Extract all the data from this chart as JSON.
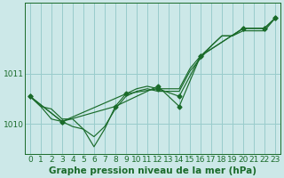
{
  "background_color": "#cce8e8",
  "plot_bg_color": "#cce8e8",
  "grid_color": "#99cccc",
  "line_color": "#1a6b2a",
  "xlabel": "Graphe pression niveau de la mer (hPa)",
  "ylim": [
    1009.4,
    1012.4
  ],
  "xlim": [
    -0.5,
    23.5
  ],
  "yticks": [
    1010,
    1011
  ],
  "xticks": [
    0,
    1,
    2,
    3,
    4,
    5,
    6,
    7,
    8,
    9,
    10,
    11,
    12,
    13,
    14,
    15,
    16,
    17,
    18,
    19,
    20,
    21,
    22,
    23
  ],
  "series": [
    [
      1010.55,
      1010.35,
      1010.3,
      1010.1,
      1010.1,
      1009.9,
      1009.75,
      1009.95,
      1010.3,
      1010.55,
      1010.65,
      1010.7,
      1010.65,
      1010.65,
      1010.65,
      1011.05,
      1011.3,
      1011.55,
      1011.75,
      1011.75,
      1011.85,
      1011.85,
      1011.85,
      1012.1
    ],
    [
      1010.55,
      1010.35,
      1010.1,
      1010.05,
      1009.95,
      1009.9,
      1009.55,
      1009.9,
      1010.35,
      1010.6,
      1010.7,
      1010.75,
      1010.7,
      1010.7,
      1010.7,
      1011.1,
      1011.35,
      1011.55,
      1011.75,
      1011.75,
      1011.9,
      1011.9,
      1011.9,
      1012.1
    ],
    [
      1010.55,
      null,
      null,
      1010.05,
      null,
      null,
      null,
      null,
      null,
      1010.6,
      null,
      null,
      1010.7,
      null,
      1010.55,
      null,
      1011.35,
      null,
      null,
      null,
      1011.9,
      null,
      1011.9,
      1012.1
    ],
    [
      1010.55,
      null,
      null,
      1010.05,
      null,
      null,
      null,
      null,
      1010.35,
      null,
      null,
      null,
      1010.75,
      null,
      1010.35,
      null,
      1011.35,
      null,
      null,
      null,
      1011.9,
      null,
      1011.9,
      1012.1
    ]
  ],
  "tick_fontsize": 6.5,
  "xlabel_fontsize": 7.5,
  "marker_style": "D",
  "marker_size": 2.5,
  "linewidth": 0.85
}
